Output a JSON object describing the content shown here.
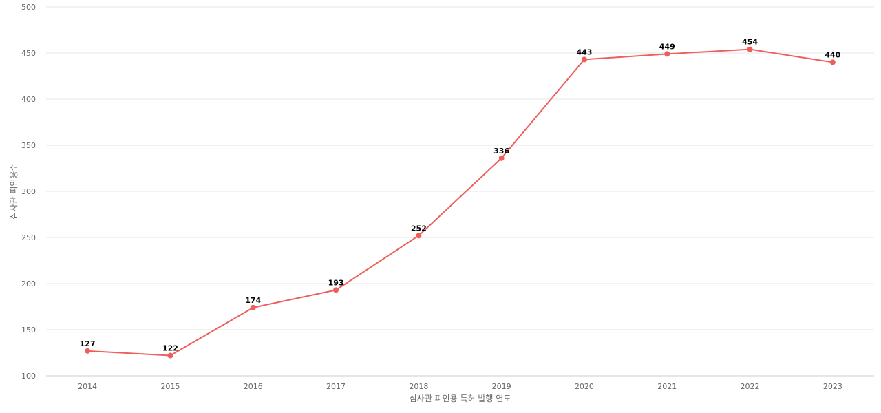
{
  "chart_data": {
    "type": "line",
    "xlabel": "심사관 피인용 특허 발행 연도",
    "ylabel": "심사관 피인용수",
    "categories": [
      "2014",
      "2015",
      "2016",
      "2017",
      "2018",
      "2019",
      "2020",
      "2021",
      "2022",
      "2023"
    ],
    "series": [
      {
        "values": [
          127,
          122,
          174,
          193,
          252,
          336,
          443,
          449,
          454,
          440
        ],
        "color": "#ee5e5b"
      }
    ],
    "ylim": [
      100,
      500
    ],
    "yticks": [
      100,
      150,
      200,
      250,
      300,
      350,
      400,
      450,
      500
    ],
    "grid": true,
    "data_labels": true,
    "legend": "none"
  }
}
